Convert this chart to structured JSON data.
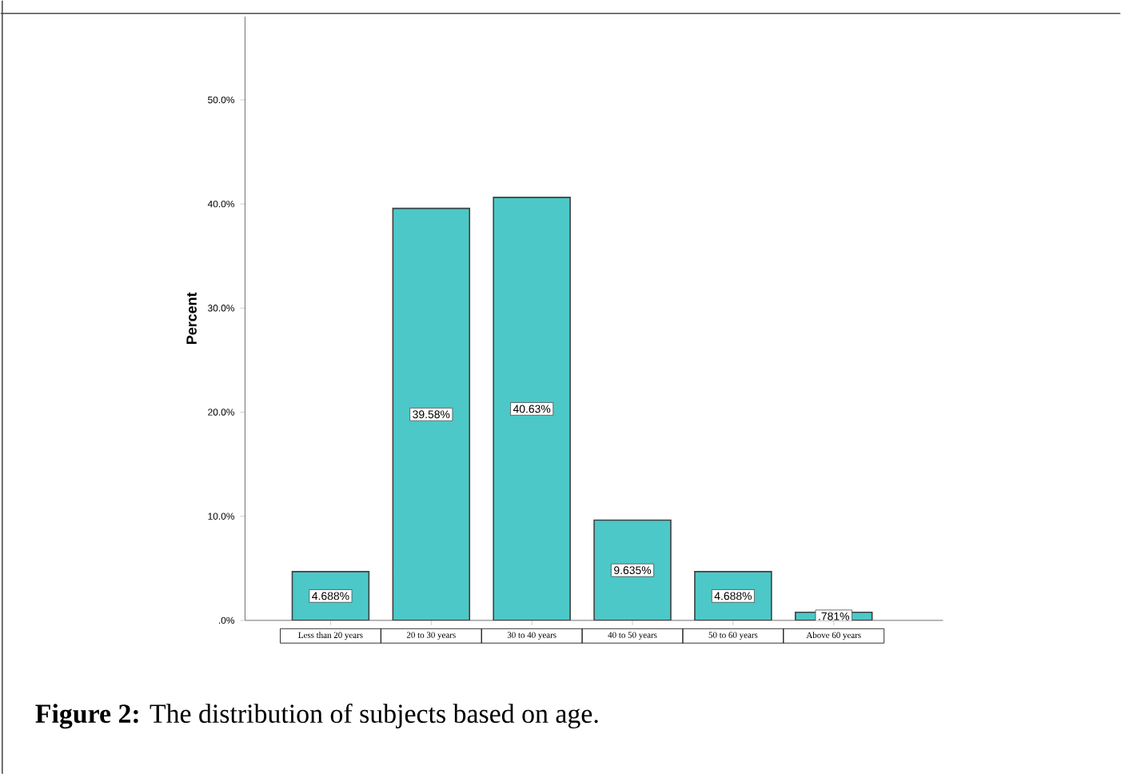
{
  "chart_data": {
    "type": "bar",
    "categories": [
      "Less than 20 years",
      "20 to 30 years",
      "30 to 40 years",
      "40 to 50 years",
      "50 to 60 years",
      "Above 60 years"
    ],
    "values": [
      4.688,
      39.58,
      40.63,
      9.635,
      4.688,
      0.781
    ],
    "value_labels": [
      "4.688%",
      "39.58%",
      "40.63%",
      "9.635%",
      "4.688%",
      ".781%"
    ],
    "color": "#4cc8c8",
    "ylabel": "Percent",
    "ylim": [
      0,
      58
    ],
    "yticks": [
      {
        "value": 0,
        "label": ".0%"
      },
      {
        "value": 10,
        "label": "10.0%"
      },
      {
        "value": 20,
        "label": "20.0%"
      },
      {
        "value": 30,
        "label": "30.0%"
      },
      {
        "value": 40,
        "label": "40.0%"
      },
      {
        "value": 50,
        "label": "50.0%"
      }
    ],
    "annotations": [
      "**Figure 2:**  The distribution of subjects based on age."
    ]
  }
}
